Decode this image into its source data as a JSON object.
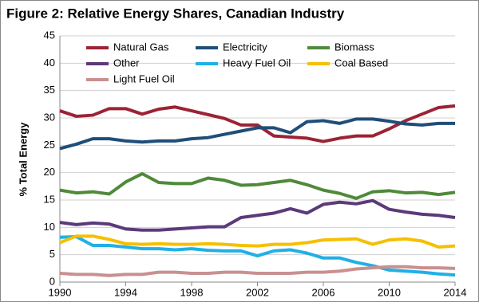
{
  "chart_data": {
    "type": "line",
    "title": "Figure 2: Relative Energy Shares, Canadian Industry",
    "y_label": "% Total Energy",
    "x": [
      1990,
      1991,
      1992,
      1993,
      1994,
      1995,
      1996,
      1997,
      1998,
      1999,
      2000,
      2001,
      2002,
      2003,
      2004,
      2005,
      2006,
      2007,
      2008,
      2009,
      2010,
      2011,
      2012,
      2013,
      2014
    ],
    "xlim": [
      1990,
      2014
    ],
    "xticks": [
      1990,
      1994,
      1998,
      2002,
      2006,
      2010,
      2014
    ],
    "ylim": [
      0,
      45
    ],
    "yticks": [
      0,
      5,
      10,
      15,
      20,
      25,
      30,
      35,
      40,
      45
    ],
    "grid": true,
    "legend": "top",
    "series": [
      {
        "name": "Natural Gas",
        "color": "#9b2335",
        "values": [
          31.3,
          30.3,
          30.5,
          31.7,
          31.7,
          30.7,
          31.6,
          32.0,
          31.3,
          30.6,
          29.9,
          28.7,
          28.7,
          26.7,
          26.5,
          26.3,
          25.7,
          26.3,
          26.7,
          26.7,
          28.0,
          29.5,
          30.7,
          31.9,
          32.2
        ]
      },
      {
        "name": "Electricity",
        "color": "#1f4e79",
        "values": [
          24.4,
          25.2,
          26.2,
          26.2,
          25.8,
          25.6,
          25.8,
          25.8,
          26.2,
          26.4,
          27.0,
          27.6,
          28.2,
          28.2,
          27.3,
          29.3,
          29.5,
          29.0,
          29.8,
          29.8,
          29.4,
          28.9,
          28.7,
          29.0,
          29.0
        ]
      },
      {
        "name": "Biomass",
        "color": "#4e8a3a",
        "values": [
          16.8,
          16.3,
          16.5,
          16.1,
          18.3,
          19.8,
          18.2,
          18.0,
          18.0,
          19.0,
          18.6,
          17.7,
          17.8,
          18.2,
          18.6,
          17.8,
          16.8,
          16.2,
          15.3,
          16.5,
          16.7,
          16.3,
          16.4,
          16.0,
          16.4
        ]
      },
      {
        "name": "Other",
        "color": "#5b3a7a",
        "values": [
          10.9,
          10.5,
          10.8,
          10.6,
          9.7,
          9.5,
          9.5,
          9.7,
          9.9,
          10.1,
          10.1,
          11.8,
          12.2,
          12.6,
          13.4,
          12.6,
          14.2,
          14.6,
          14.3,
          14.9,
          13.3,
          12.8,
          12.4,
          12.2,
          11.8
        ]
      },
      {
        "name": "Heavy Fuel Oil",
        "color": "#1fb0e6",
        "values": [
          8.2,
          8.3,
          6.7,
          6.7,
          6.4,
          6.1,
          6.1,
          5.9,
          6.1,
          5.8,
          5.7,
          5.7,
          4.8,
          5.7,
          5.9,
          5.3,
          4.4,
          4.4,
          3.6,
          3.0,
          2.2,
          2.0,
          1.8,
          1.5,
          1.3
        ]
      },
      {
        "name": "Coal Based",
        "color": "#f5c000",
        "values": [
          7.2,
          8.4,
          8.4,
          7.8,
          7.0,
          6.9,
          7.0,
          6.9,
          6.9,
          7.0,
          6.9,
          6.7,
          6.6,
          6.9,
          6.9,
          7.2,
          7.7,
          7.8,
          7.9,
          6.9,
          7.7,
          7.9,
          7.5,
          6.4,
          6.6
        ]
      },
      {
        "name": "Light Fuel Oil",
        "color": "#c99090",
        "values": [
          1.6,
          1.4,
          1.4,
          1.2,
          1.4,
          1.4,
          1.8,
          1.8,
          1.6,
          1.6,
          1.8,
          1.8,
          1.6,
          1.6,
          1.6,
          1.8,
          1.8,
          2.0,
          2.4,
          2.6,
          2.8,
          2.8,
          2.6,
          2.6,
          2.5
        ]
      }
    ]
  }
}
